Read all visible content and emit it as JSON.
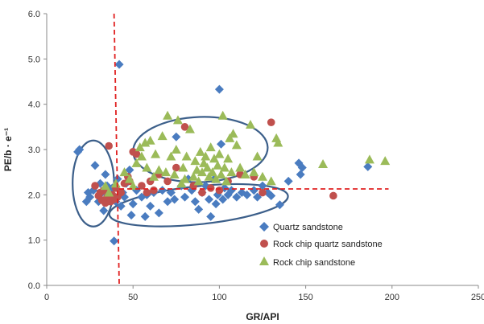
{
  "chart_data": {
    "type": "scatter",
    "xlabel": "GR/API",
    "ylabel": "PE/b · e⁻¹",
    "xlim": [
      0,
      250
    ],
    "ylim": [
      0,
      6
    ],
    "x_ticks": [
      "0",
      "50",
      "100",
      "150",
      "200",
      "250"
    ],
    "y_ticks": [
      "0.0",
      "1.0",
      "2.0",
      "3.0",
      "4.0",
      "5.0",
      "6.0"
    ],
    "grid": false,
    "legend_position": "bottom-right",
    "reference_lines": [
      {
        "type": "vertical",
        "x_from": 39,
        "x_to": 42,
        "y_from": 0,
        "y_to": 6,
        "color": "#e02020"
      },
      {
        "type": "horizontal",
        "y": 2.13,
        "x_from": 42,
        "x_to": 198,
        "color": "#e02020"
      }
    ],
    "ellipses": [
      {
        "cx": 27,
        "cy": 2.25,
        "rx": 12,
        "ry": 0.95,
        "rotate": 0,
        "color": "#3c5f8a"
      },
      {
        "cx": 89,
        "cy": 3.0,
        "rx": 39,
        "ry": 0.72,
        "rotate": -2,
        "color": "#3c5f8a"
      },
      {
        "cx": 88,
        "cy": 1.77,
        "rx": 52,
        "ry": 0.42,
        "rotate": -6,
        "color": "#3c5f8a"
      }
    ],
    "series": [
      {
        "name": "Quartz sandstone",
        "marker": "diamond",
        "color": "#4a7cc0",
        "points": [
          [
            18,
            2.95
          ],
          [
            19,
            3.0
          ],
          [
            23,
            1.85
          ],
          [
            24,
            2.05
          ],
          [
            25,
            1.95
          ],
          [
            27,
            2.1
          ],
          [
            28,
            2.65
          ],
          [
            30,
            1.85
          ],
          [
            31,
            2.25
          ],
          [
            32,
            2.05
          ],
          [
            33,
            1.65
          ],
          [
            34,
            2.45
          ],
          [
            35,
            2.2
          ],
          [
            36,
            1.95
          ],
          [
            38,
            2.15
          ],
          [
            39,
            0.98
          ],
          [
            40,
            1.85
          ],
          [
            41,
            2.35
          ],
          [
            42,
            4.88
          ],
          [
            43,
            1.75
          ],
          [
            44,
            2.05
          ],
          [
            45,
            1.95
          ],
          [
            46,
            2.25
          ],
          [
            48,
            2.55
          ],
          [
            49,
            1.55
          ],
          [
            50,
            1.8
          ],
          [
            52,
            2.1
          ],
          [
            55,
            1.95
          ],
          [
            57,
            1.52
          ],
          [
            58,
            2.0
          ],
          [
            60,
            1.75
          ],
          [
            62,
            2.05
          ],
          [
            65,
            1.6
          ],
          [
            67,
            2.1
          ],
          [
            70,
            1.85
          ],
          [
            72,
            2.05
          ],
          [
            74,
            1.9
          ],
          [
            75,
            3.28
          ],
          [
            78,
            2.2
          ],
          [
            80,
            1.95
          ],
          [
            82,
            2.35
          ],
          [
            84,
            2.1
          ],
          [
            86,
            1.85
          ],
          [
            88,
            1.68
          ],
          [
            90,
            2.05
          ],
          [
            92,
            2.2
          ],
          [
            94,
            1.9
          ],
          [
            95,
            1.52
          ],
          [
            97,
            2.35
          ],
          [
            98,
            1.8
          ],
          [
            99,
            2.0
          ],
          [
            100,
            4.33
          ],
          [
            101,
            3.12
          ],
          [
            102,
            1.9
          ],
          [
            103,
            2.15
          ],
          [
            105,
            2.0
          ],
          [
            107,
            2.1
          ],
          [
            110,
            1.95
          ],
          [
            113,
            2.05
          ],
          [
            116,
            2.0
          ],
          [
            120,
            2.1
          ],
          [
            122,
            1.95
          ],
          [
            125,
            2.2
          ],
          [
            128,
            2.05
          ],
          [
            130,
            1.98
          ],
          [
            135,
            1.78
          ],
          [
            140,
            2.3
          ],
          [
            146,
            2.7
          ],
          [
            147,
            2.45
          ],
          [
            148,
            2.6
          ],
          [
            186,
            2.62
          ]
        ]
      },
      {
        "name": "Rock chip quartz sandstone",
        "marker": "circle",
        "color": "#c0504d",
        "points": [
          [
            28,
            2.2
          ],
          [
            30,
            1.98
          ],
          [
            31,
            2.05
          ],
          [
            32,
            1.88
          ],
          [
            33,
            2.1
          ],
          [
            34,
            1.82
          ],
          [
            35,
            1.95
          ],
          [
            36,
            3.08
          ],
          [
            37,
            1.85
          ],
          [
            38,
            2.0
          ],
          [
            39,
            1.9
          ],
          [
            40,
            2.15
          ],
          [
            41,
            1.95
          ],
          [
            43,
            2.05
          ],
          [
            45,
            2.25
          ],
          [
            47,
            2.4
          ],
          [
            48,
            2.3
          ],
          [
            50,
            2.95
          ],
          [
            52,
            2.9
          ],
          [
            55,
            2.2
          ],
          [
            58,
            2.05
          ],
          [
            60,
            2.3
          ],
          [
            62,
            2.1
          ],
          [
            65,
            2.45
          ],
          [
            70,
            2.3
          ],
          [
            75,
            2.6
          ],
          [
            80,
            3.5
          ],
          [
            85,
            2.2
          ],
          [
            90,
            2.05
          ],
          [
            95,
            2.15
          ],
          [
            100,
            2.1
          ],
          [
            105,
            2.3
          ],
          [
            112,
            2.45
          ],
          [
            120,
            2.4
          ],
          [
            125,
            2.05
          ],
          [
            130,
            3.6
          ],
          [
            166,
            1.98
          ]
        ]
      },
      {
        "name": "Rock chip sandstone",
        "marker": "triangle",
        "color": "#9bbb59",
        "points": [
          [
            34,
            2.2
          ],
          [
            36,
            2.05
          ],
          [
            40,
            2.25
          ],
          [
            45,
            2.5
          ],
          [
            48,
            2.35
          ],
          [
            50,
            2.2
          ],
          [
            52,
            2.7
          ],
          [
            54,
            3.05
          ],
          [
            55,
            2.85
          ],
          [
            57,
            3.15
          ],
          [
            58,
            2.6
          ],
          [
            60,
            3.2
          ],
          [
            62,
            2.4
          ],
          [
            63,
            2.9
          ],
          [
            65,
            2.55
          ],
          [
            67,
            3.3
          ],
          [
            69,
            2.5
          ],
          [
            70,
            3.75
          ],
          [
            72,
            2.85
          ],
          [
            74,
            2.45
          ],
          [
            75,
            3.0
          ],
          [
            76,
            3.65
          ],
          [
            78,
            2.25
          ],
          [
            79,
            2.6
          ],
          [
            80,
            2.35
          ],
          [
            81,
            2.85
          ],
          [
            83,
            3.45
          ],
          [
            85,
            2.4
          ],
          [
            86,
            2.75
          ],
          [
            87,
            2.55
          ],
          [
            88,
            2.3
          ],
          [
            89,
            2.95
          ],
          [
            90,
            2.5
          ],
          [
            91,
            2.7
          ],
          [
            92,
            2.85
          ],
          [
            93,
            2.6
          ],
          [
            94,
            2.4
          ],
          [
            95,
            3.05
          ],
          [
            96,
            2.5
          ],
          [
            97,
            2.8
          ],
          [
            98,
            2.35
          ],
          [
            99,
            2.65
          ],
          [
            100,
            2.9
          ],
          [
            101,
            2.45
          ],
          [
            102,
            3.75
          ],
          [
            103,
            2.6
          ],
          [
            104,
            2.3
          ],
          [
            105,
            2.8
          ],
          [
            106,
            3.25
          ],
          [
            107,
            2.5
          ],
          [
            108,
            3.35
          ],
          [
            110,
            3.1
          ],
          [
            112,
            2.6
          ],
          [
            115,
            2.45
          ],
          [
            118,
            3.55
          ],
          [
            120,
            2.5
          ],
          [
            122,
            2.85
          ],
          [
            125,
            2.4
          ],
          [
            130,
            2.3
          ],
          [
            133,
            3.25
          ],
          [
            134,
            3.15
          ],
          [
            160,
            2.68
          ],
          [
            187,
            2.78
          ],
          [
            196,
            2.75
          ]
        ]
      }
    ]
  }
}
